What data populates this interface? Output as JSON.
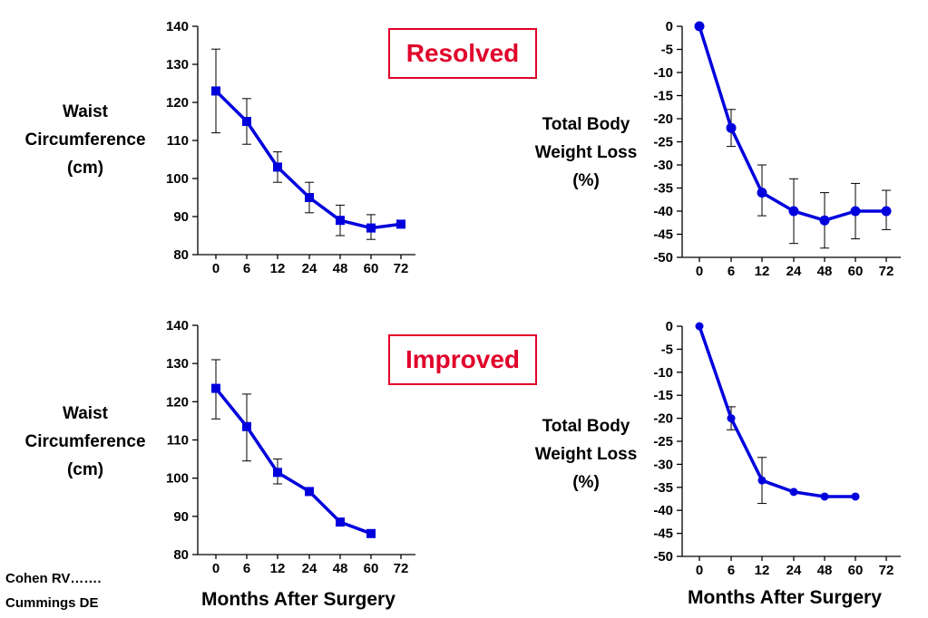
{
  "charts": [
    {
      "ylabel": [
        "Waist",
        "Circumference",
        "(cm)"
      ],
      "status": "Resolved",
      "xlabel": ""
    },
    {
      "ylabel": [
        "Total Body",
        "Weight Loss",
        "(%)"
      ],
      "status": "",
      "xlabel": ""
    },
    {
      "ylabel": [
        "Waist",
        "Circumference",
        "(cm)"
      ],
      "status": "Improved",
      "xlabel": "Months After Surgery"
    },
    {
      "ylabel": [
        "Total Body",
        "Weight Loss",
        "(%)"
      ],
      "status": "",
      "xlabel": "Months After Surgery"
    }
  ],
  "credits": [
    "Cohen RV…….",
    "Cummings DE"
  ],
  "colors": {
    "series": "#0000dd",
    "status": "#e0002a",
    "error_bar": "#000000"
  },
  "chart_data": [
    {
      "type": "line",
      "title": "Resolved",
      "ylabel": "Waist Circumference (cm)",
      "xlabel": "",
      "categories": [
        "0",
        "6",
        "12",
        "24",
        "48",
        "60",
        "72"
      ],
      "yticks": [
        80,
        90,
        100,
        110,
        120,
        130,
        140
      ],
      "ylim": [
        80,
        140
      ],
      "marker": "square",
      "series": [
        {
          "values": [
            123,
            115,
            103,
            95,
            89,
            87,
            88
          ],
          "err_low": [
            112,
            109,
            99,
            91,
            85,
            84,
            null
          ],
          "err_high": [
            134,
            121,
            107,
            99,
            93,
            90.5,
            null
          ]
        }
      ]
    },
    {
      "type": "line",
      "title": "",
      "ylabel": "Total Body Weight Loss (%)",
      "xlabel": "",
      "categories": [
        "0",
        "6",
        "12",
        "24",
        "48",
        "60",
        "72"
      ],
      "yticks": [
        0,
        -5,
        -10,
        -15,
        -20,
        -25,
        -30,
        -35,
        -40,
        -45,
        -50
      ],
      "ylim": [
        -50,
        0
      ],
      "marker": "circle",
      "series": [
        {
          "values": [
            0,
            -22,
            -36,
            -40,
            -42,
            -40,
            -40
          ],
          "err_low": [
            null,
            -26,
            -41,
            -47,
            -48,
            -46,
            -44
          ],
          "err_high": [
            null,
            -18,
            -30,
            -33,
            -36,
            -34,
            -35.5
          ]
        }
      ]
    },
    {
      "type": "line",
      "title": "Improved",
      "ylabel": "Waist Circumference (cm)",
      "xlabel": "Months After Surgery",
      "categories": [
        "0",
        "6",
        "12",
        "24",
        "48",
        "60",
        "72"
      ],
      "yticks": [
        80,
        90,
        100,
        110,
        120,
        130,
        140
      ],
      "ylim": [
        80,
        140
      ],
      "marker": "square",
      "series": [
        {
          "values": [
            123.5,
            113.5,
            101.5,
            96.5,
            88.5,
            85.5,
            null
          ],
          "err_low": [
            115.5,
            104.5,
            98.5,
            null,
            null,
            null,
            null
          ],
          "err_high": [
            131,
            122,
            105,
            null,
            null,
            null,
            null
          ]
        }
      ]
    },
    {
      "type": "line",
      "title": "",
      "ylabel": "Total Body Weight Loss (%)",
      "xlabel": "Months After Surgery",
      "categories": [
        "0",
        "6",
        "12",
        "24",
        "48",
        "60",
        "72"
      ],
      "yticks": [
        0,
        -5,
        -10,
        -15,
        -20,
        -25,
        -30,
        -35,
        -40,
        -45,
        -50
      ],
      "ylim": [
        -50,
        0
      ],
      "marker": "circle",
      "series": [
        {
          "values": [
            0,
            -20,
            -33.5,
            -36,
            -37,
            -37,
            null
          ],
          "err_low": [
            null,
            -22.5,
            -38.5,
            null,
            null,
            null,
            null
          ],
          "err_high": [
            null,
            -17.5,
            -28.5,
            null,
            null,
            null,
            null
          ]
        }
      ]
    }
  ]
}
